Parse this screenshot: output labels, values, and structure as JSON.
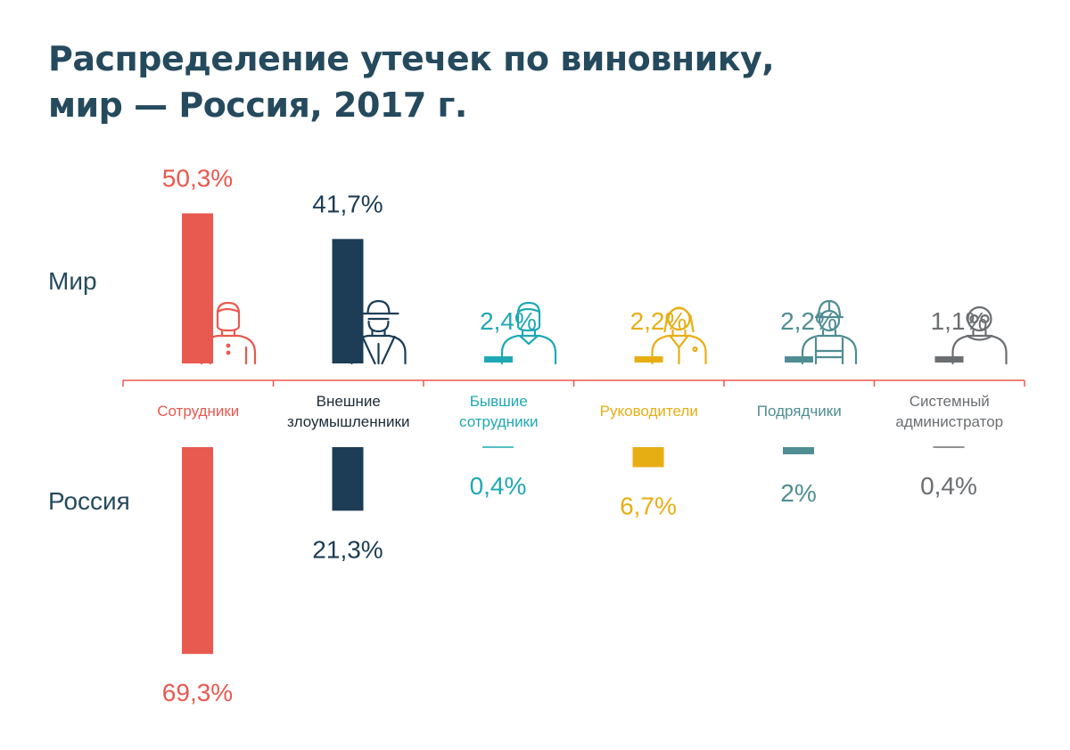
{
  "chart_data": {
    "type": "bar",
    "title_lines": [
      "Распределение утечек по виновнику,",
      "мир — Россия, 2017 г."
    ],
    "row_labels": {
      "world": "Мир",
      "russia": "Россия"
    },
    "unit": "%",
    "categories": [
      {
        "lines": [
          "Сотрудники"
        ],
        "color": "#e8594f",
        "icon": "employee-icon",
        "world_label": "50,3%",
        "russia_label": "69,3%"
      },
      {
        "lines": [
          "Внешние",
          "злоумышленники"
        ],
        "color": "#1c3d55",
        "icon": "hacker-icon",
        "world_label": "41,7%",
        "russia_label": "21,3%"
      },
      {
        "lines": [
          "Бывшие",
          "сотрудники"
        ],
        "color": "#1fa8b4",
        "icon": "former-employee-icon",
        "world_label": "2,4%",
        "russia_label": "0,4%"
      },
      {
        "lines": [
          "Руководители"
        ],
        "color": "#e7ae14",
        "icon": "manager-icon",
        "world_label": "2,2%",
        "russia_label": "6,7%"
      },
      {
        "lines": [
          "Подрядчики"
        ],
        "color": "#4f8d92",
        "icon": "contractor-icon",
        "world_label": "2,2%",
        "russia_label": "2%"
      },
      {
        "lines": [
          "Системный",
          "администратор"
        ],
        "color": "#6b6e71",
        "icon": "sysadmin-icon",
        "world_label": "1,1%",
        "russia_label": "0,4%"
      }
    ],
    "series": [
      {
        "name": "Мир",
        "values": [
          50.3,
          41.7,
          2.4,
          2.2,
          2.2,
          1.1
        ]
      },
      {
        "name": "Россия",
        "values": [
          69.3,
          21.3,
          0.4,
          6.7,
          2.0,
          0.4
        ]
      }
    ],
    "ylim": [
      0,
      70
    ]
  }
}
